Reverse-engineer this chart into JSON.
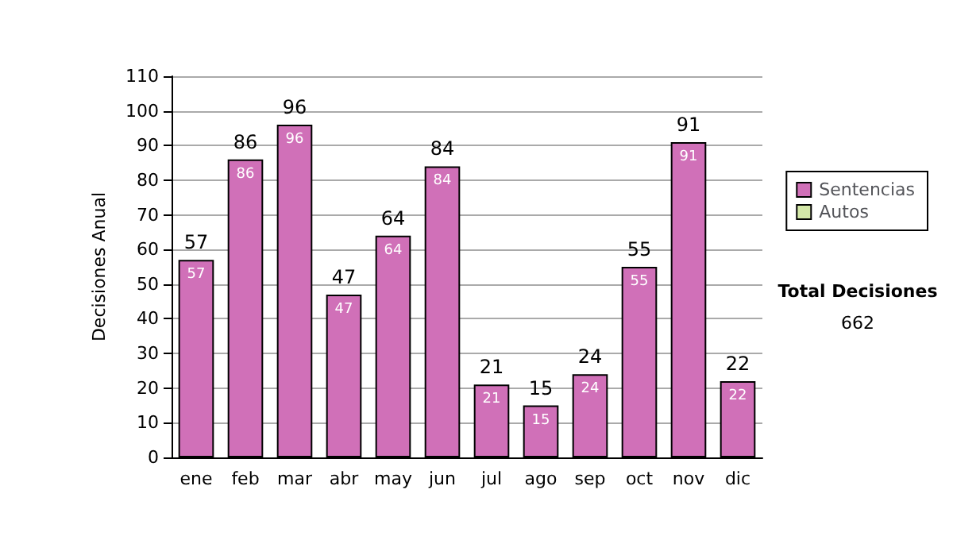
{
  "chart_data": {
    "type": "bar",
    "ylabel": "Decisiones Anual",
    "categories": [
      "ene",
      "feb",
      "mar",
      "abr",
      "may",
      "jun",
      "jul",
      "ago",
      "sep",
      "oct",
      "nov",
      "dic"
    ],
    "series": [
      {
        "name": "Sentencias",
        "color": "#d070b8",
        "values": [
          57,
          86,
          96,
          47,
          64,
          84,
          21,
          15,
          24,
          55,
          91,
          22
        ],
        "value_labels": [
          "57",
          "86",
          "96",
          "47",
          "64",
          "84",
          "21",
          "15",
          "24",
          "55",
          "91",
          "22"
        ]
      },
      {
        "name": "Autos",
        "color": "#d4e8a8",
        "values": [
          0,
          0,
          0,
          0,
          0,
          0,
          0,
          0,
          0,
          0,
          0,
          0
        ]
      }
    ],
    "stacked": true,
    "totals": [
      "57",
      "86",
      "96",
      "47",
      "64",
      "84",
      "21",
      "15",
      "24",
      "55",
      "91",
      "22"
    ],
    "ylim": [
      0,
      110
    ],
    "yticks": [
      0,
      10,
      20,
      30,
      40,
      50,
      60,
      70,
      80,
      90,
      100,
      110
    ],
    "grid": "y",
    "legend": "right",
    "annotations": [
      "Total Decisiones",
      "662"
    ]
  }
}
